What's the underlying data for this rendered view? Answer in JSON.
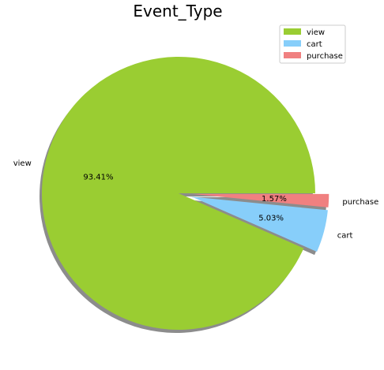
{
  "chart_data": {
    "type": "pie",
    "title": "Event_Type",
    "categories": [
      "view",
      "cart",
      "purchase"
    ],
    "values": [
      93.41,
      5.03,
      1.57
    ],
    "value_labels": [
      "93.41%",
      "5.03%",
      "1.57%"
    ],
    "colors": [
      "#9ACD32",
      "#87CEFA",
      "#F08080"
    ],
    "explode": [
      0,
      0.1,
      0.1
    ],
    "shadow": true,
    "legend": {
      "position": "top-right",
      "entries": [
        "view",
        "cart",
        "purchase"
      ]
    }
  }
}
